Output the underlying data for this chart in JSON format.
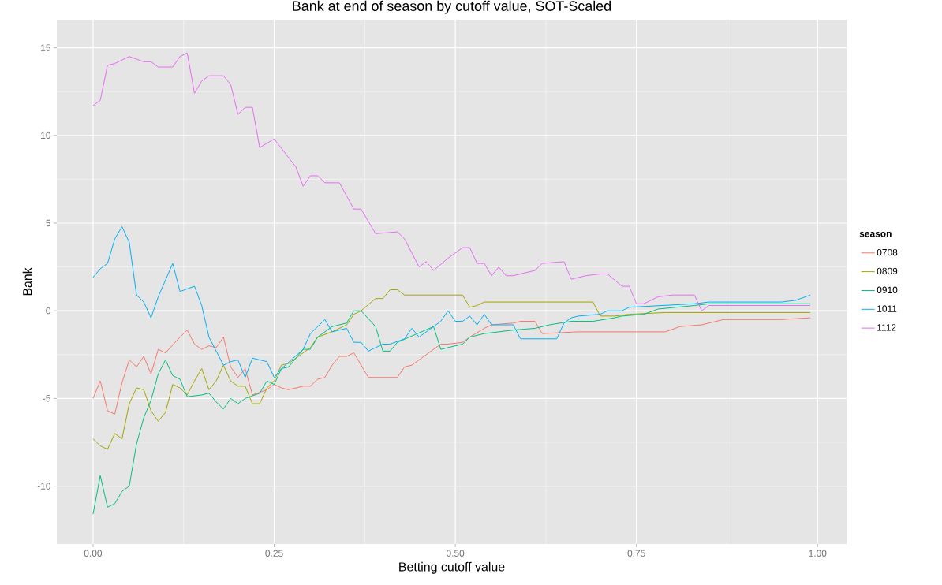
{
  "chart_data": {
    "type": "line",
    "title": "Bank at end of season by cutoff value, SOT-Scaled",
    "xlabel": "Betting cutoff value",
    "ylabel": "Bank",
    "legend_title": "season",
    "xlim": [
      -0.05,
      1.04
    ],
    "ylim": [
      -13.3,
      16.6
    ],
    "xticks": [
      {
        "value": 0,
        "label": "0.00"
      },
      {
        "value": 0.25,
        "label": "0.25"
      },
      {
        "value": 0.5,
        "label": "0.50"
      },
      {
        "value": 0.75,
        "label": "0.75"
      },
      {
        "value": 1,
        "label": "1.00"
      }
    ],
    "yticks": [
      -10,
      -5,
      0,
      5,
      10,
      15
    ],
    "grid": true,
    "legend": "right",
    "marker": "none",
    "line_style": "solid",
    "series": [
      {
        "name": "0708",
        "color": "#F8766D",
        "x": [
          0,
          0.01,
          0.02,
          0.03,
          0.04,
          0.05,
          0.06,
          0.07,
          0.08,
          0.09,
          0.1,
          0.12,
          0.13,
          0.14,
          0.15,
          0.16,
          0.17,
          0.18,
          0.19,
          0.2,
          0.21,
          0.22,
          0.24,
          0.25,
          0.26,
          0.27,
          0.28,
          0.29,
          0.3,
          0.31,
          0.32,
          0.33,
          0.34,
          0.35,
          0.36,
          0.38,
          0.42,
          0.43,
          0.44,
          0.47,
          0.48,
          0.49,
          0.51,
          0.52,
          0.54,
          0.55,
          0.58,
          0.59,
          0.61,
          0.62,
          0.67,
          0.79,
          0.81,
          0.84,
          0.87,
          0.95,
          0.99
        ],
        "values": [
          -5.0,
          -4.0,
          -5.7,
          -5.9,
          -4.1,
          -2.8,
          -3.2,
          -2.6,
          -3.6,
          -2.2,
          -2.4,
          -1.5,
          -1.1,
          -1.9,
          -2.2,
          -2.0,
          -2.1,
          -1.5,
          -3.2,
          -3.8,
          -3.3,
          -4.8,
          -4.5,
          -4.2,
          -4.4,
          -4.5,
          -4.4,
          -4.3,
          -4.3,
          -3.9,
          -3.8,
          -3.1,
          -2.6,
          -2.6,
          -2.4,
          -3.8,
          -3.8,
          -3.2,
          -3.1,
          -2.2,
          -1.9,
          -1.9,
          -1.8,
          -1.5,
          -1.0,
          -0.8,
          -0.7,
          -0.6,
          -0.6,
          -1.3,
          -1.2,
          -1.2,
          -0.9,
          -0.8,
          -0.5,
          -0.5,
          -0.4
        ]
      },
      {
        "name": "0809",
        "color": "#A3A500",
        "x": [
          0,
          0.01,
          0.02,
          0.03,
          0.04,
          0.05,
          0.06,
          0.07,
          0.08,
          0.09,
          0.1,
          0.11,
          0.12,
          0.13,
          0.14,
          0.15,
          0.16,
          0.17,
          0.18,
          0.19,
          0.2,
          0.21,
          0.22,
          0.23,
          0.24,
          0.25,
          0.26,
          0.27,
          0.3,
          0.31,
          0.33,
          0.35,
          0.36,
          0.37,
          0.39,
          0.4,
          0.41,
          0.42,
          0.43,
          0.51,
          0.52,
          0.53,
          0.54,
          0.6,
          0.61,
          0.69,
          0.7,
          0.72,
          0.74,
          0.79,
          0.99
        ],
        "values": [
          -7.3,
          -7.7,
          -7.9,
          -7.0,
          -7.3,
          -5.3,
          -4.4,
          -4.5,
          -5.7,
          -6.3,
          -5.8,
          -4.2,
          -4.4,
          -4.8,
          -4.0,
          -3.3,
          -4.5,
          -4.0,
          -3.1,
          -4.0,
          -4.3,
          -4.3,
          -5.3,
          -5.3,
          -4.4,
          -4.0,
          -3.1,
          -3.0,
          -2.1,
          -1.5,
          -1.2,
          -0.8,
          -0.2,
          0.0,
          0.7,
          0.7,
          1.2,
          1.2,
          0.9,
          0.9,
          0.2,
          0.3,
          0.5,
          0.5,
          0.5,
          0.5,
          -0.3,
          -0.3,
          -0.2,
          -0.1,
          -0.1
        ]
      },
      {
        "name": "0910",
        "color": "#00BF7D",
        "x": [
          0,
          0.01,
          0.02,
          0.03,
          0.04,
          0.05,
          0.06,
          0.07,
          0.08,
          0.09,
          0.1,
          0.11,
          0.12,
          0.13,
          0.15,
          0.16,
          0.17,
          0.18,
          0.19,
          0.2,
          0.21,
          0.23,
          0.24,
          0.25,
          0.26,
          0.27,
          0.29,
          0.3,
          0.31,
          0.33,
          0.35,
          0.36,
          0.37,
          0.39,
          0.4,
          0.41,
          0.42,
          0.47,
          0.48,
          0.51,
          0.52,
          0.54,
          0.58,
          0.61,
          0.63,
          0.66,
          0.69,
          0.72,
          0.73,
          0.76,
          0.78,
          0.83,
          0.85,
          0.99
        ],
        "values": [
          -11.6,
          -9.4,
          -11.2,
          -11.0,
          -10.3,
          -10.0,
          -7.6,
          -6.1,
          -5.1,
          -3.6,
          -2.8,
          -3.7,
          -3.9,
          -4.9,
          -4.8,
          -4.7,
          -5.2,
          -5.6,
          -5.0,
          -5.3,
          -5.0,
          -4.7,
          -4.0,
          -4.2,
          -3.3,
          -3.2,
          -2.2,
          -2.2,
          -1.5,
          -0.9,
          -0.7,
          0.0,
          0.0,
          -0.9,
          -2.3,
          -2.3,
          -1.8,
          -0.9,
          -2.2,
          -1.9,
          -1.5,
          -1.3,
          -1.1,
          -1.0,
          -0.8,
          -0.6,
          -0.6,
          -0.4,
          -0.3,
          -0.2,
          0.1,
          0.3,
          0.4,
          0.4
        ]
      },
      {
        "name": "1011",
        "color": "#00B0F6",
        "x": [
          0,
          0.01,
          0.02,
          0.03,
          0.04,
          0.05,
          0.06,
          0.07,
          0.08,
          0.09,
          0.11,
          0.12,
          0.14,
          0.15,
          0.16,
          0.18,
          0.19,
          0.2,
          0.21,
          0.22,
          0.24,
          0.25,
          0.26,
          0.29,
          0.3,
          0.32,
          0.33,
          0.35,
          0.36,
          0.37,
          0.38,
          0.4,
          0.41,
          0.43,
          0.44,
          0.45,
          0.47,
          0.48,
          0.49,
          0.5,
          0.51,
          0.52,
          0.53,
          0.54,
          0.55,
          0.58,
          0.59,
          0.64,
          0.65,
          0.66,
          0.67,
          0.7,
          0.71,
          0.73,
          0.74,
          0.83,
          0.85,
          0.95,
          0.97,
          0.99
        ],
        "values": [
          1.9,
          2.4,
          2.7,
          4.1,
          4.8,
          3.9,
          0.9,
          0.5,
          -0.4,
          0.8,
          2.7,
          1.1,
          1.4,
          0.3,
          -1.5,
          -3.1,
          -2.9,
          -2.8,
          -3.8,
          -2.7,
          -2.9,
          -3.8,
          -3.3,
          -2.2,
          -1.3,
          -0.5,
          -1.2,
          -1.0,
          -1.8,
          -1.8,
          -2.3,
          -1.9,
          -1.9,
          -1.6,
          -1.0,
          -1.5,
          -0.9,
          -0.6,
          0.0,
          -0.6,
          -0.6,
          -0.3,
          -0.8,
          -0.2,
          -0.8,
          -0.8,
          -1.6,
          -1.6,
          -0.7,
          -0.4,
          -0.3,
          -0.2,
          0.0,
          0.0,
          0.2,
          0.4,
          0.5,
          0.5,
          0.6,
          0.9
        ]
      },
      {
        "name": "1112",
        "color": "#E76BF3",
        "x": [
          0,
          0.01,
          0.02,
          0.03,
          0.05,
          0.07,
          0.08,
          0.09,
          0.11,
          0.12,
          0.13,
          0.14,
          0.15,
          0.16,
          0.18,
          0.19,
          0.2,
          0.21,
          0.22,
          0.23,
          0.25,
          0.28,
          0.29,
          0.3,
          0.31,
          0.32,
          0.34,
          0.36,
          0.37,
          0.39,
          0.42,
          0.43,
          0.45,
          0.46,
          0.47,
          0.49,
          0.51,
          0.52,
          0.53,
          0.54,
          0.55,
          0.56,
          0.57,
          0.58,
          0.61,
          0.62,
          0.65,
          0.66,
          0.68,
          0.7,
          0.71,
          0.73,
          0.74,
          0.75,
          0.76,
          0.78,
          0.8,
          0.83,
          0.84,
          0.85,
          0.88,
          0.9,
          0.99
        ],
        "values": [
          11.7,
          12.0,
          14.0,
          14.1,
          14.5,
          14.2,
          14.2,
          13.9,
          13.9,
          14.5,
          14.7,
          12.4,
          13.1,
          13.4,
          13.4,
          12.9,
          11.2,
          11.6,
          11.6,
          9.3,
          9.8,
          8.2,
          7.1,
          7.7,
          7.7,
          7.3,
          7.3,
          5.8,
          5.8,
          4.4,
          4.5,
          4.1,
          2.5,
          2.8,
          2.3,
          3.0,
          3.6,
          3.6,
          2.7,
          2.7,
          2.0,
          2.5,
          2.0,
          2.0,
          2.3,
          2.7,
          2.8,
          1.8,
          2.0,
          2.1,
          2.1,
          1.4,
          1.4,
          0.4,
          0.4,
          0.8,
          0.9,
          0.9,
          0.0,
          0.3,
          0.3,
          0.3,
          0.3
        ]
      }
    ]
  }
}
